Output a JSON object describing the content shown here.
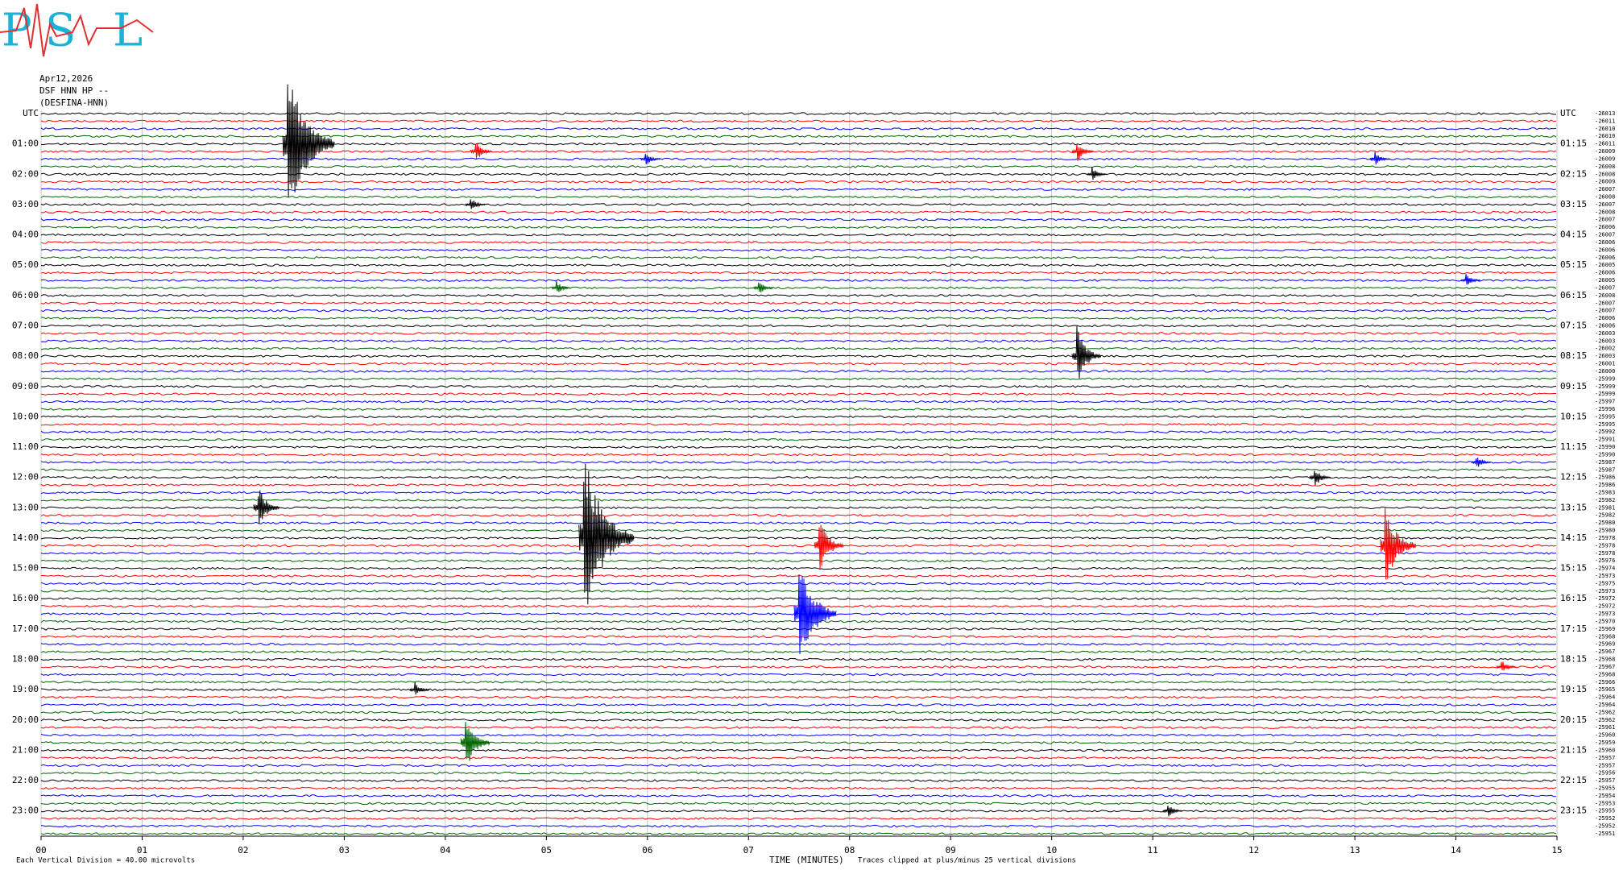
{
  "chart_data": {
    "type": "helicorder",
    "logo": [
      "P",
      "S",
      "L"
    ],
    "date": "Apr12,2026",
    "station": "DSF HNN HP --",
    "channel": "(DESFINA-HNN)",
    "left_labels": [
      "UTC",
      "01:00",
      "02:00",
      "03:00",
      "04:00",
      "05:00",
      "06:00",
      "07:00",
      "08:00",
      "09:00",
      "10:00",
      "11:00",
      "12:00",
      "13:00",
      "14:00",
      "15:00",
      "16:00",
      "17:00",
      "18:00",
      "19:00",
      "20:00",
      "21:00",
      "22:00",
      "23:00"
    ],
    "right_labels": [
      "UTC",
      "01:15",
      "02:15",
      "03:15",
      "04:15",
      "05:15",
      "06:15",
      "07:15",
      "08:15",
      "09:15",
      "10:15",
      "11:15",
      "12:15",
      "13:15",
      "14:15",
      "15:15",
      "16:15",
      "17:15",
      "18:15",
      "19:15",
      "20:15",
      "21:15",
      "22:15",
      "23:15"
    ],
    "trace_colors": [
      "#000000",
      "#ff0000",
      "#0000ff",
      "#006400"
    ],
    "trace_offsets": [
      -26013,
      -26011,
      -26010,
      -26010,
      -26011,
      -26009,
      -26009,
      -26008,
      -26008,
      -26009,
      -26007,
      -26008,
      -26007,
      -26008,
      -26007,
      -26006,
      -26007,
      -26006,
      -26006,
      -26006,
      -26005,
      -26006,
      -26005,
      -26007,
      -26008,
      -26007,
      -26007,
      -26006,
      -26006,
      -26003,
      -26003,
      -26002,
      -26003,
      -26001,
      -26000,
      -25999,
      -25999,
      -25999,
      -25997,
      -25996,
      -25995,
      -25995,
      -25992,
      -25991,
      -25990,
      -25990,
      -25987,
      -25987,
      -25986,
      -25986,
      -25983,
      -25982,
      -25981,
      -25982,
      -25980,
      -25980,
      -25978,
      -25978,
      -25978,
      -25976,
      -25974,
      -25973,
      -25975,
      -25973,
      -25972,
      -25972,
      -25973,
      -25970,
      -25969,
      -25968,
      -25969,
      -25967,
      -25968,
      -25967,
      -25968,
      -25966,
      -25965,
      -25964,
      -25964,
      -25962,
      -25962,
      -25961,
      -25960,
      -25959,
      -25960,
      -25957,
      -25957,
      -25956,
      -25957,
      -25955,
      -25954,
      -25953,
      -25955,
      -25952,
      -25952,
      -25951
    ],
    "xlim": [
      0,
      15
    ],
    "xticks": [
      {
        "value": 0,
        "label": "00"
      },
      {
        "value": 1,
        "label": "01"
      },
      {
        "value": 2,
        "label": "02"
      },
      {
        "value": 3,
        "label": "03"
      },
      {
        "value": 4,
        "label": "04"
      },
      {
        "value": 5,
        "label": "05"
      },
      {
        "value": 6,
        "label": "06"
      },
      {
        "value": 7,
        "label": "07"
      },
      {
        "value": 8,
        "label": "08"
      },
      {
        "value": 9,
        "label": "09"
      },
      {
        "value": 10,
        "label": "10"
      },
      {
        "value": 11,
        "label": "11"
      },
      {
        "value": 12,
        "label": "12"
      },
      {
        "value": 13,
        "label": "13"
      },
      {
        "value": 14,
        "label": "14"
      },
      {
        "value": 15,
        "label": "15"
      }
    ],
    "xlabel": "TIME (MINUTES)",
    "scale_note": "Each Vertical Division =  40.00 microvolts",
    "clip_note": "Traces clipped at plus/minus 25 vertical divisions",
    "grid": true,
    "events": [
      {
        "trace": 4,
        "minute": 2.44,
        "amplitude": 11
      },
      {
        "trace": 5,
        "minute": 4.3,
        "amplitude": 1.5
      },
      {
        "trace": 5,
        "minute": 10.25,
        "amplitude": 1.5
      },
      {
        "trace": 6,
        "minute": 5.98,
        "amplitude": 1
      },
      {
        "trace": 6,
        "minute": 13.2,
        "amplitude": 1
      },
      {
        "trace": 8,
        "minute": 10.4,
        "amplitude": 1
      },
      {
        "trace": 12,
        "minute": 4.25,
        "amplitude": 1
      },
      {
        "trace": 22,
        "minute": 14.1,
        "amplitude": 1
      },
      {
        "trace": 23,
        "minute": 5.1,
        "amplitude": 1
      },
      {
        "trace": 23,
        "minute": 7.1,
        "amplitude": 1
      },
      {
        "trace": 32,
        "minute": 10.25,
        "amplitude": 4
      },
      {
        "trace": 46,
        "minute": 14.2,
        "amplitude": 1
      },
      {
        "trace": 48,
        "minute": 12.6,
        "amplitude": 1.5
      },
      {
        "trace": 52,
        "minute": 2.15,
        "amplitude": 3
      },
      {
        "trace": 56,
        "minute": 5.37,
        "amplitude": 12
      },
      {
        "trace": 57,
        "minute": 7.7,
        "amplitude": 4
      },
      {
        "trace": 57,
        "minute": 13.3,
        "amplitude": 6
      },
      {
        "trace": 66,
        "minute": 7.5,
        "amplitude": 8
      },
      {
        "trace": 73,
        "minute": 14.45,
        "amplitude": 1
      },
      {
        "trace": 76,
        "minute": 3.7,
        "amplitude": 1
      },
      {
        "trace": 83,
        "minute": 4.2,
        "amplitude": 4
      },
      {
        "trace": 92,
        "minute": 11.15,
        "amplitude": 1
      }
    ]
  }
}
